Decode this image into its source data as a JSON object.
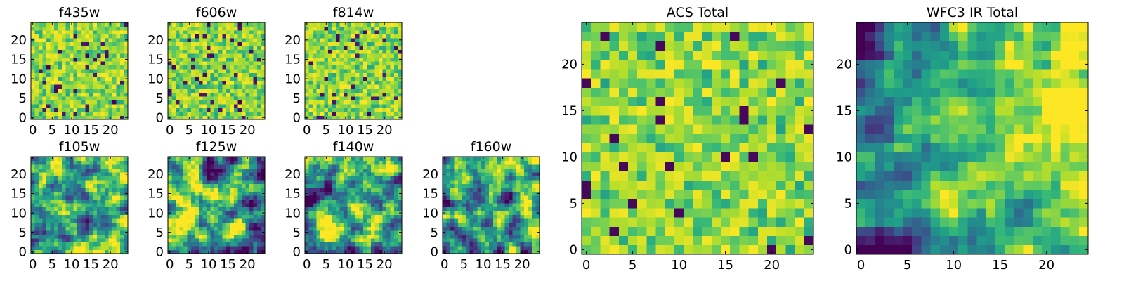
{
  "chart_data": [
    {
      "id": "f435w",
      "type": "heatmap",
      "title": "f435w",
      "grid": [
        25,
        25
      ],
      "xlim": [
        -0.5,
        24.5
      ],
      "ylim": [
        -0.5,
        24.5
      ],
      "xticks": [
        0,
        5,
        10,
        15,
        20
      ],
      "yticks": [
        0,
        5,
        10,
        15,
        20
      ],
      "colormap": "viridis",
      "texture": "fine",
      "seed": 11
    },
    {
      "id": "f606w",
      "type": "heatmap",
      "title": "f606w",
      "grid": [
        25,
        25
      ],
      "xlim": [
        -0.5,
        24.5
      ],
      "ylim": [
        -0.5,
        24.5
      ],
      "xticks": [
        0,
        5,
        10,
        15,
        20
      ],
      "yticks": [
        0,
        5,
        10,
        15,
        20
      ],
      "colormap": "viridis",
      "texture": "fine",
      "seed": 23
    },
    {
      "id": "f814w",
      "type": "heatmap",
      "title": "f814w",
      "grid": [
        25,
        25
      ],
      "xlim": [
        -0.5,
        24.5
      ],
      "ylim": [
        -0.5,
        24.5
      ],
      "xticks": [
        0,
        5,
        10,
        15,
        20
      ],
      "yticks": [
        0,
        5,
        10,
        15,
        20
      ],
      "colormap": "viridis",
      "texture": "fine",
      "seed": 37
    },
    {
      "id": "f105w",
      "type": "heatmap",
      "title": "f105w",
      "grid": [
        25,
        25
      ],
      "xlim": [
        -0.5,
        24.5
      ],
      "ylim": [
        -0.5,
        24.5
      ],
      "xticks": [
        0,
        5,
        10,
        15,
        20
      ],
      "yticks": [
        0,
        5,
        10,
        15,
        20
      ],
      "colormap": "viridis",
      "texture": "smooth",
      "seed": 41
    },
    {
      "id": "f125w",
      "type": "heatmap",
      "title": "f125w",
      "grid": [
        25,
        25
      ],
      "xlim": [
        -0.5,
        24.5
      ],
      "ylim": [
        -0.5,
        24.5
      ],
      "xticks": [
        0,
        5,
        10,
        15,
        20
      ],
      "yticks": [
        0,
        5,
        10,
        15,
        20
      ],
      "colormap": "viridis",
      "texture": "smooth",
      "seed": 53
    },
    {
      "id": "f140w",
      "type": "heatmap",
      "title": "f140w",
      "grid": [
        25,
        25
      ],
      "xlim": [
        -0.5,
        24.5
      ],
      "ylim": [
        -0.5,
        24.5
      ],
      "xticks": [
        0,
        5,
        10,
        15,
        20
      ],
      "yticks": [
        0,
        5,
        10,
        15,
        20
      ],
      "colormap": "viridis",
      "texture": "smooth",
      "seed": 67
    },
    {
      "id": "f160w",
      "type": "heatmap",
      "title": "f160w",
      "grid": [
        25,
        25
      ],
      "xlim": [
        -0.5,
        24.5
      ],
      "ylim": [
        -0.5,
        24.5
      ],
      "xticks": [
        0,
        5,
        10,
        15,
        20
      ],
      "yticks": [
        0,
        5,
        10,
        15,
        20
      ],
      "colormap": "viridis",
      "texture": "smooth",
      "seed": 79
    },
    {
      "id": "acs-total",
      "type": "heatmap",
      "title": "ACS Total",
      "grid": [
        25,
        25
      ],
      "xlim": [
        -0.5,
        24.5
      ],
      "ylim": [
        -0.5,
        24.5
      ],
      "xticks": [
        0,
        5,
        10,
        15,
        20
      ],
      "yticks": [
        0,
        5,
        10,
        15,
        20
      ],
      "colormap": "viridis",
      "texture": "fine-bright",
      "seed": 89
    },
    {
      "id": "wfc3-ir-total",
      "type": "heatmap",
      "title": "WFC3 IR Total",
      "grid": [
        25,
        25
      ],
      "xlim": [
        -0.5,
        24.5
      ],
      "ylim": [
        -0.5,
        24.5
      ],
      "xticks": [
        0,
        5,
        10,
        15,
        20
      ],
      "yticks": [
        0,
        5,
        10,
        15,
        20
      ],
      "colormap": "viridis",
      "texture": "gradient",
      "seed": 97
    }
  ],
  "colors": {
    "viridis": [
      "#440154",
      "#482878",
      "#3e4989",
      "#31688e",
      "#26828e",
      "#1f9e89",
      "#35b779",
      "#6ece58",
      "#b5de2b",
      "#fde725"
    ],
    "axis": "#000000",
    "background": "#ffffff"
  }
}
